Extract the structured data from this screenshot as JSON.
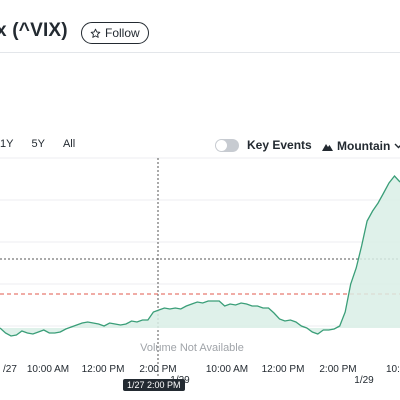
{
  "header": {
    "title": "x (^VIX)",
    "follow_label": "Follow"
  },
  "toolbar": {
    "ranges": [
      "1Y",
      "5Y",
      "All"
    ],
    "key_events_label": "Key Events",
    "key_events_on": false,
    "chart_type_label": "Mountain"
  },
  "chart": {
    "volume_label": "Volume Not Available",
    "x_tick_labels": [
      "/27",
      "10:00 AM",
      "12:00 PM",
      "2:00 PM",
      "10:00 AM",
      "12:00 PM",
      "2:00 PM",
      "10:"
    ],
    "x_sub_labels": [
      "1/29",
      "1/29"
    ],
    "crosshair_label": "1/27 2:00 PM",
    "colors": {
      "line": "#3a9e78",
      "reference": "#e05a4e",
      "fill": "#d9efe6"
    }
  },
  "chart_data": {
    "type": "area",
    "series": [
      {
        "values": [
          8,
          3,
          0,
          1,
          5,
          3,
          2,
          4,
          6,
          3,
          3,
          4,
          7,
          9,
          11,
          13,
          14,
          13,
          12,
          10,
          13,
          12,
          11,
          12,
          15,
          14,
          16,
          16,
          24,
          26,
          28,
          27,
          28,
          27,
          30,
          32,
          34,
          33,
          35,
          35,
          35,
          30,
          32,
          31,
          33,
          32,
          30,
          30,
          28,
          28,
          23,
          17,
          15,
          16,
          14,
          10,
          8,
          4,
          2,
          6,
          6,
          7,
          10,
          24,
          52,
          68,
          90,
          115,
          125,
          133,
          143,
          153,
          160,
          154
        ]
      }
    ],
    "x_tick_labels": [
      "/27",
      "10:00 AM",
      "12:00 PM",
      "2:00 PM",
      "10:00 AM",
      "12:00 PM",
      "2:00 PM",
      "10:"
    ]
  }
}
